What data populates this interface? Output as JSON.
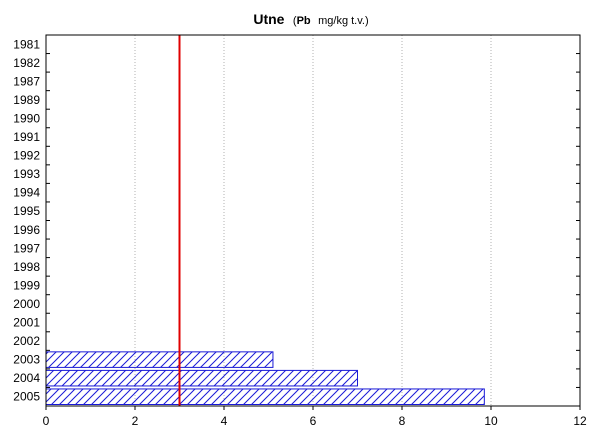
{
  "chart_data": {
    "type": "bar",
    "orientation": "horizontal",
    "title": "Utne",
    "title_suffix_open": "(",
    "title_element": "Pb",
    "title_unit": "mg/kg t.v.)",
    "categories": [
      "1981",
      "1982",
      "1987",
      "1989",
      "1990",
      "1991",
      "1992",
      "1993",
      "1994",
      "1995",
      "1996",
      "1997",
      "1998",
      "1999",
      "2000",
      "2001",
      "2002",
      "2003",
      "2004",
      "2005"
    ],
    "values": [
      null,
      null,
      null,
      null,
      null,
      null,
      null,
      null,
      null,
      null,
      null,
      null,
      null,
      null,
      null,
      null,
      null,
      5.1,
      7.0,
      9.85
    ],
    "x_ticks": [
      0,
      2,
      4,
      6,
      8,
      10,
      12
    ],
    "xlim": [
      0,
      12
    ],
    "reference_line": 3.0,
    "grid": "vertical dotted",
    "colors": {
      "bar_stroke": "#1a1ad6",
      "bar_hatch": "#1a1ad6",
      "reference_line": "#e00000",
      "grid": "#b0b0b0"
    }
  }
}
